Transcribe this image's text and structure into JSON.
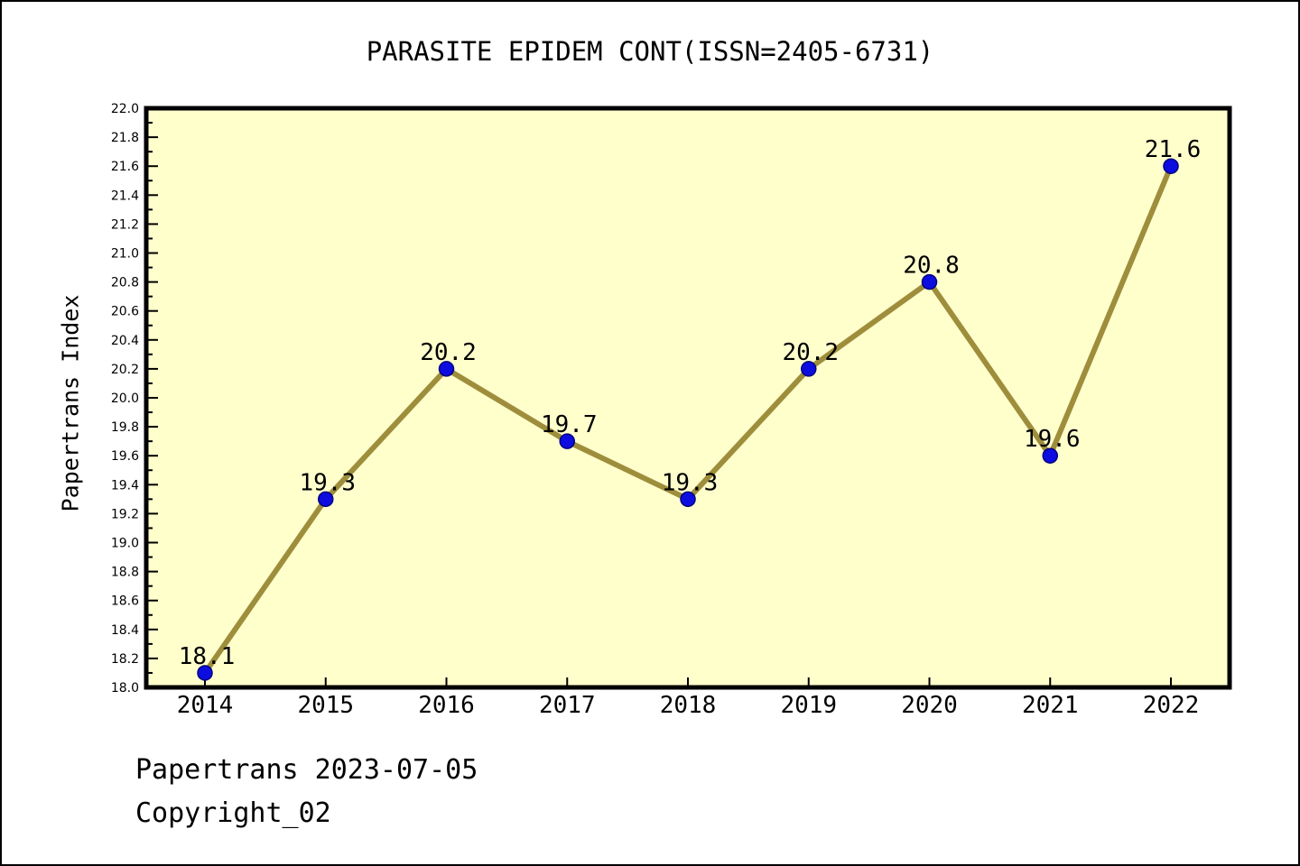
{
  "chart_data": {
    "type": "line",
    "title": "PARASITE EPIDEM CONT(ISSN=2405-6731)",
    "ylabel": "Papertrans Index",
    "xlabel": "",
    "categories": [
      2014,
      2015,
      2016,
      2017,
      2018,
      2019,
      2020,
      2021,
      2022
    ],
    "values": [
      18.1,
      19.3,
      20.2,
      19.7,
      19.3,
      20.2,
      20.8,
      19.6,
      21.6
    ],
    "point_labels": [
      "18.1",
      "19.3",
      "20.2",
      "19.7",
      "19.3",
      "20.2",
      "20.8",
      "19.6",
      "21.6"
    ],
    "ylim": [
      18.0,
      22.0
    ],
    "ytick_major_step": 0.2,
    "ytick_minor_step": 0.1,
    "grid": false,
    "legend": null,
    "colors": {
      "plot_background": "#FFFFCC",
      "line": "#9E8E3C",
      "marker_fill": "#0D0DE0",
      "marker_edge": "#000080",
      "axis": "#000000",
      "text": "#000000"
    }
  },
  "footer": {
    "line1": "Papertrans 2023-07-05",
    "line2": "Copyright_02"
  }
}
